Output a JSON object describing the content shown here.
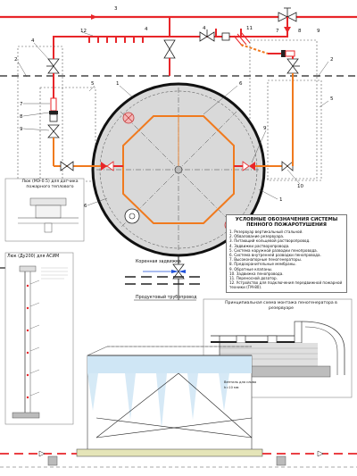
{
  "colors": {
    "fire_water": "#e8262a",
    "foam": "#f07a1e",
    "structure": "#222222",
    "tank_fill": "#d9d9d9",
    "water": "#cfe6f5"
  },
  "callouts": [
    "1",
    "2",
    "3",
    "4",
    "5",
    "6",
    "7",
    "8",
    "9",
    "10",
    "11",
    "12"
  ],
  "labels": {
    "hatch_sensor": "Люк (МЭ-0.5) для датчика пожарного теплового",
    "hatch_asim": "Люк (Ду200) для АСИМ",
    "root_valve": "Коренная задвижка",
    "product_pipe": "Продуктовый трубопровод",
    "scheme_title": "Принципиальная схема монтажа пеногенератора в резервуаре",
    "detail_bottom_left": "Вентиль для слива h=10 мм"
  },
  "legend": {
    "title": "УСЛОВНЫЕ ОБОЗНАЧЕНИЯ СИСТЕМЫ ПЕННОГО ПОЖАРОТУШЕНИЯ",
    "items": [
      "1.  Резервуар вертикальный стальной.",
      "2.  Обвалование резервуара.",
      "3.  Питающий кольцевой растворопровод.",
      "4.  Задвижки растворопровода.",
      "5.  Система наружной разводки пенопровода.",
      "6.  Система внутренней разводки пенопровода.",
      "7.  Высоконапорные пеногенераторы.",
      "8.  Предохранительные мембраны.",
      "9.  Обратные клапаны.",
      "10. Задвижка пенопровода.",
      "11. Переносной дозатор.",
      "12. Устройство для подключения передвижной пожарной техники (ГМ-80)."
    ]
  }
}
